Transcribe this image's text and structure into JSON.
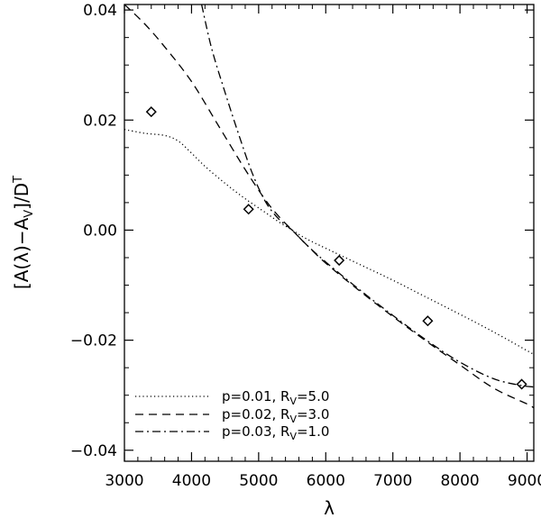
{
  "chart_data": {
    "type": "line",
    "title": "",
    "xlabel": "λ",
    "ylabel_parts": [
      "[A(λ)−A",
      "V",
      "]/D",
      "T"
    ],
    "xlim": [
      3000,
      9100
    ],
    "ylim": [
      -0.042,
      0.041
    ],
    "xticks": [
      3000,
      4000,
      5000,
      6000,
      7000,
      8000,
      9000
    ],
    "xtick_labels": [
      "3000",
      "4000",
      "5000",
      "6000",
      "7000",
      "8000",
      "9000"
    ],
    "yticks": [
      -0.04,
      -0.02,
      0.0,
      0.02,
      0.04
    ],
    "ytick_labels": [
      "−0.04",
      "−0.02",
      "0.00",
      "0.02",
      "0.04"
    ],
    "grid": false,
    "legend_position": "bottom-left",
    "series": [
      {
        "name": "p=0.01, R_V=5.0",
        "legend_parts": [
          "p=0.01, R",
          "V",
          "=5.0"
        ],
        "style": "dotted",
        "x": [
          3000,
          3300,
          3600,
          3800,
          4000,
          4200,
          4500,
          4800,
          5100,
          5300,
          5500,
          5700,
          6000,
          6500,
          7000,
          7500,
          8000,
          8500,
          9000,
          9100
        ],
        "y": [
          0.0183,
          0.0176,
          0.0172,
          0.0162,
          0.014,
          0.0116,
          0.0085,
          0.0057,
          0.0032,
          0.0015,
          0.0,
          -0.0015,
          -0.0033,
          -0.0062,
          -0.0091,
          -0.0122,
          -0.0153,
          -0.0185,
          -0.0219,
          -0.0226
        ]
      },
      {
        "name": "p=0.02, R_V=3.0",
        "legend_parts": [
          "p=0.02, R",
          "V",
          "=3.0"
        ],
        "style": "dashed",
        "x": [
          3000,
          3300,
          3600,
          4000,
          4400,
          4800,
          5100,
          5300,
          5500,
          5700,
          6000,
          6500,
          7000,
          7500,
          8000,
          8500,
          9000,
          9100
        ],
        "y": [
          0.041,
          0.0375,
          0.0333,
          0.027,
          0.019,
          0.011,
          0.0055,
          0.0025,
          0.0,
          -0.0025,
          -0.006,
          -0.011,
          -0.0157,
          -0.0202,
          -0.0245,
          -0.0287,
          -0.0316,
          -0.0323
        ]
      },
      {
        "name": "p=0.03, R_V=1.0",
        "legend_parts": [
          "p=0.03, R",
          "V",
          "=1.0"
        ],
        "style": "dashdot",
        "x": [
          4150,
          4300,
          4500,
          4700,
          4900,
          5100,
          5300,
          5500,
          5700,
          6000,
          6500,
          7000,
          7500,
          8000,
          8500,
          8900,
          9100
        ],
        "y": [
          0.041,
          0.033,
          0.025,
          0.0175,
          0.0105,
          0.0052,
          0.002,
          0.0,
          -0.0025,
          -0.0058,
          -0.0108,
          -0.0155,
          -0.02,
          -0.024,
          -0.027,
          -0.0282,
          -0.0285
        ]
      }
    ],
    "points": {
      "marker": "diamond",
      "x": [
        3400,
        4850,
        6200,
        7520,
        8920
      ],
      "y": [
        0.0215,
        0.0038,
        -0.0055,
        -0.0165,
        -0.028
      ]
    }
  }
}
